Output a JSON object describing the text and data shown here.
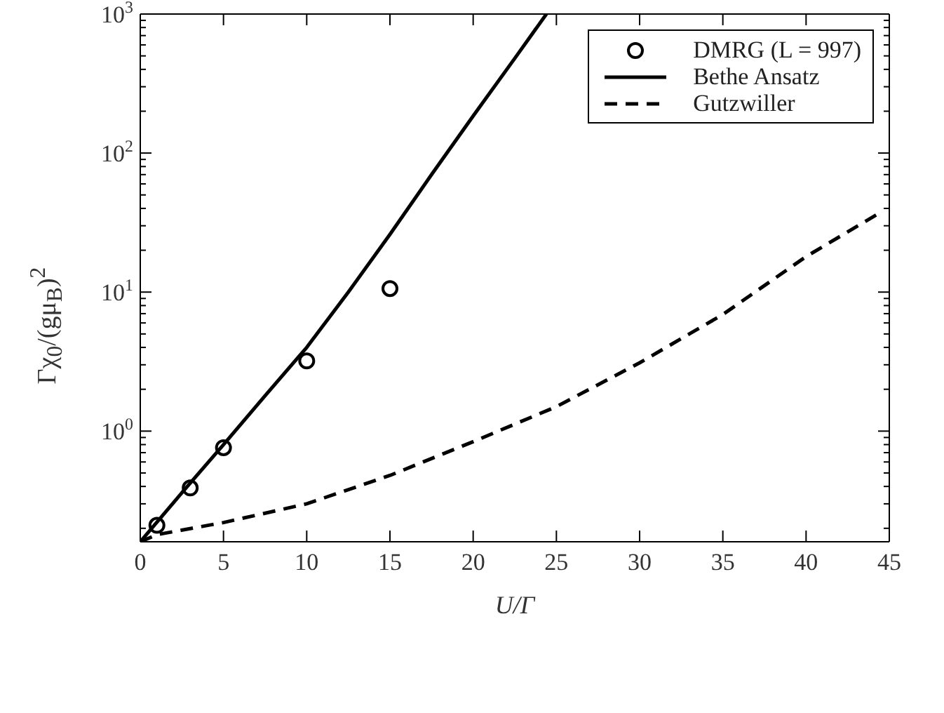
{
  "chart_data": {
    "type": "line",
    "xlabel": "U/Γ",
    "ylabel": "Γχ$_{0}$/(gμ$_{B}$)$^{2}$",
    "log": "y",
    "xlim": [
      0,
      45
    ],
    "xticks": [
      0,
      5,
      10,
      15,
      20,
      25,
      30,
      35,
      40,
      45
    ],
    "ylim": [
      0.16,
      1000
    ],
    "yticks": [
      {
        "value": 0.2,
        "label": null
      },
      {
        "value": 0.3,
        "label": null
      },
      {
        "value": 0.4,
        "label": null
      },
      {
        "value": 0.5,
        "label": null
      },
      {
        "value": 0.6,
        "label": null
      },
      {
        "value": 0.7,
        "label": null
      },
      {
        "value": 0.8,
        "label": null
      },
      {
        "value": 0.9,
        "label": null
      },
      {
        "value": 1,
        "label": "10$^{0}$"
      },
      {
        "value": 2,
        "label": null
      },
      {
        "value": 3,
        "label": null
      },
      {
        "value": 4,
        "label": null
      },
      {
        "value": 5,
        "label": null
      },
      {
        "value": 6,
        "label": null
      },
      {
        "value": 7,
        "label": null
      },
      {
        "value": 8,
        "label": null
      },
      {
        "value": 9,
        "label": null
      },
      {
        "value": 10,
        "label": "10$^{1}$"
      },
      {
        "value": 20,
        "label": null
      },
      {
        "value": 30,
        "label": null
      },
      {
        "value": 40,
        "label": null
      },
      {
        "value": 50,
        "label": null
      },
      {
        "value": 60,
        "label": null
      },
      {
        "value": 70,
        "label": null
      },
      {
        "value": 80,
        "label": null
      },
      {
        "value": 90,
        "label": null
      },
      {
        "value": 100,
        "label": "10$^{2}$"
      },
      {
        "value": 200,
        "label": null
      },
      {
        "value": 300,
        "label": null
      },
      {
        "value": 400,
        "label": null
      },
      {
        "value": 500,
        "label": null
      },
      {
        "value": 600,
        "label": null
      },
      {
        "value": 700,
        "label": null
      },
      {
        "value": 800,
        "label": null
      },
      {
        "value": 900,
        "label": null
      },
      {
        "value": 1000,
        "label": "10$^{3}$"
      }
    ],
    "grid": false,
    "legend": "top right",
    "series": [
      {
        "name": "DMRG (L = 997)",
        "type": "scatter",
        "marker": "circle",
        "color": "#000000",
        "x": [
          1,
          3,
          5,
          10,
          15
        ],
        "values": [
          0.21,
          0.39,
          0.76,
          3.2,
          10.6
        ]
      },
      {
        "name": "Bethe Ansatz",
        "type": "line",
        "line_style": "solid",
        "marker": "none",
        "color": "#000000",
        "x": [
          0,
          2.5,
          5,
          7.5,
          10,
          12.5,
          15,
          17.5,
          20,
          22.5,
          24.4
        ],
        "values": [
          0.16,
          0.36,
          0.8,
          1.8,
          4,
          10,
          26,
          70,
          185,
          480,
          1000
        ]
      },
      {
        "name": "Gutzwiller",
        "type": "line",
        "line_style": "dashed",
        "marker": "none",
        "color": "#000000",
        "x": [
          0,
          1,
          5,
          10,
          15,
          20,
          25,
          30,
          35,
          40,
          44.4
        ],
        "values": [
          0.16,
          0.18,
          0.22,
          0.3,
          0.48,
          0.84,
          1.5,
          3.1,
          6.9,
          18,
          37
        ]
      }
    ]
  }
}
